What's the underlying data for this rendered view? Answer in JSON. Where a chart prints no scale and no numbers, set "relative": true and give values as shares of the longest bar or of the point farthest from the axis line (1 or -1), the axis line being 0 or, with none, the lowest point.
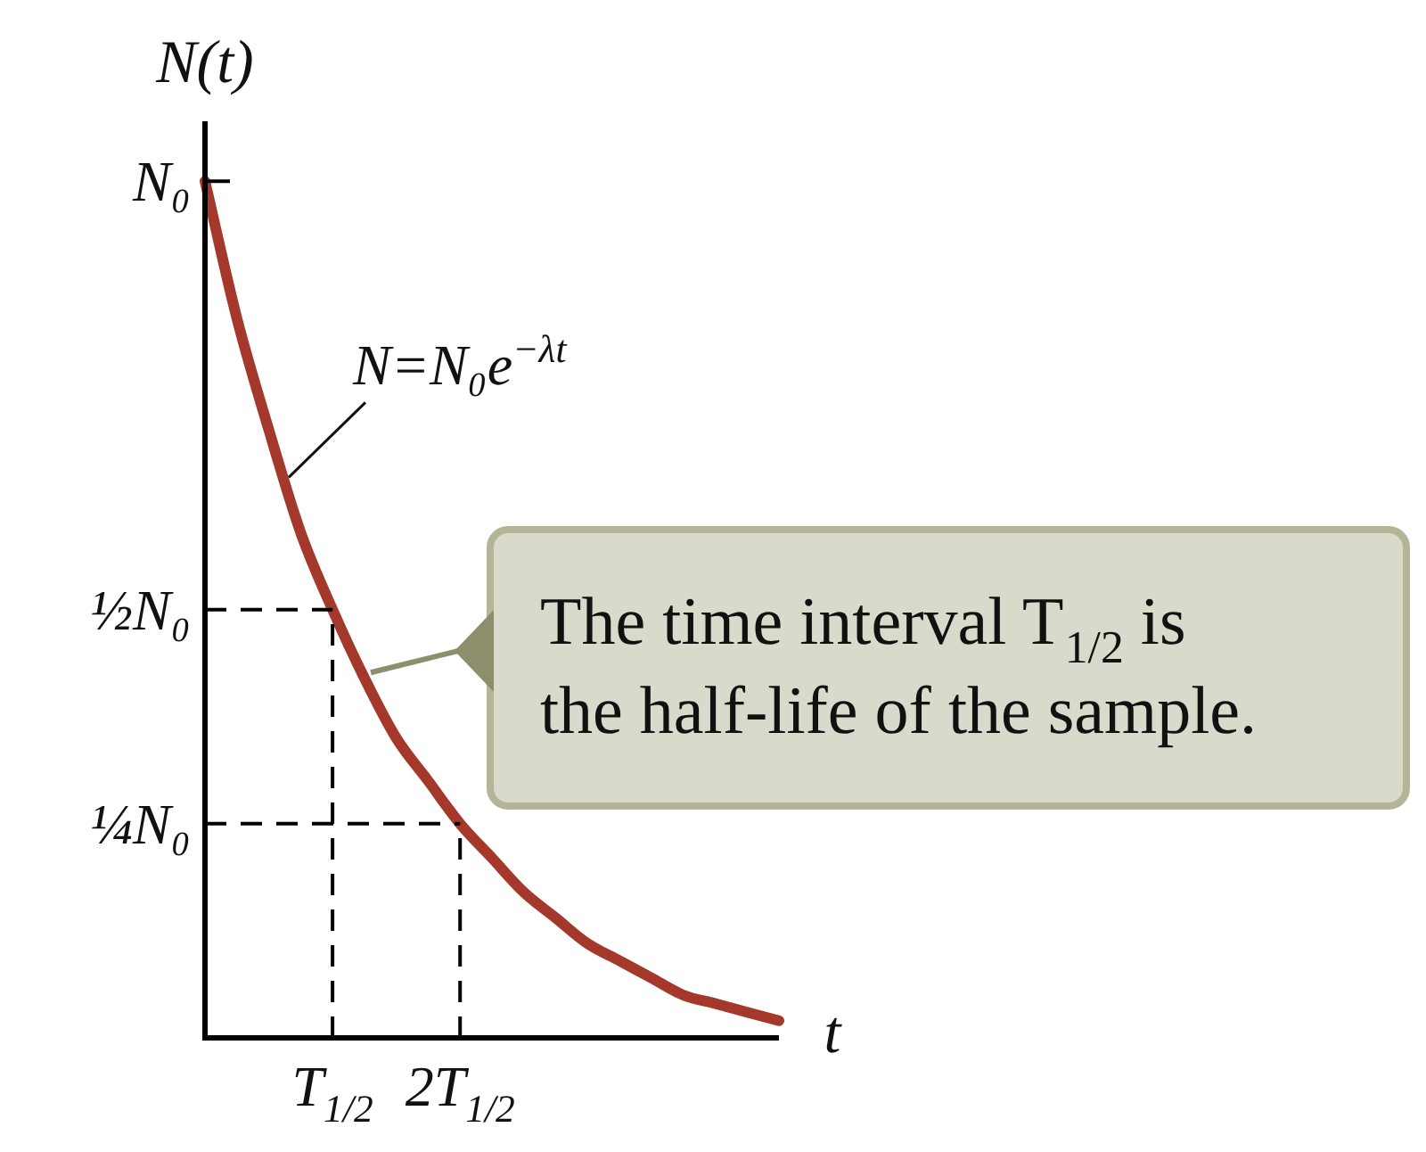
{
  "chart_data": {
    "type": "line",
    "xlabel": "t",
    "ylabel": "N(t)",
    "relative": true,
    "categories": [
      null,
      null,
      null,
      null,
      "T$_{1/2}$",
      null,
      null,
      null,
      "2T$_{1/2}$",
      null,
      null,
      null,
      null,
      null,
      null,
      null,
      null,
      null,
      null
    ],
    "series": [
      {
        "color": "#a3382b",
        "values": [
          1,
          0.84,
          0.71,
          0.59,
          0.5,
          0.42,
          0.35,
          0.3,
          0.25,
          0.21,
          0.17,
          0.14,
          0.11,
          0.09,
          0.07,
          0.05,
          0.04,
          0.03,
          0.02
        ]
      }
    ],
    "ref_lines": [
      {
        "axis": "y",
        "value": 1,
        "label": "N₀",
        "color": "#000000",
        "line_style": "solid"
      },
      {
        "axis": "y",
        "value": 0.5,
        "label": "½N₀",
        "color": "#000000",
        "line_style": "dashed"
      },
      {
        "axis": "y",
        "value": 0.25,
        "label": "¼N₀",
        "color": "#000000",
        "line_style": "dashed"
      },
      {
        "axis": "x",
        "value": "T$_{1/2}$",
        "color": "#000000",
        "line_style": "dashed"
      },
      {
        "axis": "x",
        "value": "2T$_{1/2}$",
        "color": "#000000",
        "line_style": "dashed"
      }
    ],
    "annotations": [
      "N=N₀e$^{−λt}$",
      "The time interval T$_{1/2}$ is the half-life of the sample."
    ],
    "legend": false,
    "marker": "none",
    "line_style": "solid"
  }
}
